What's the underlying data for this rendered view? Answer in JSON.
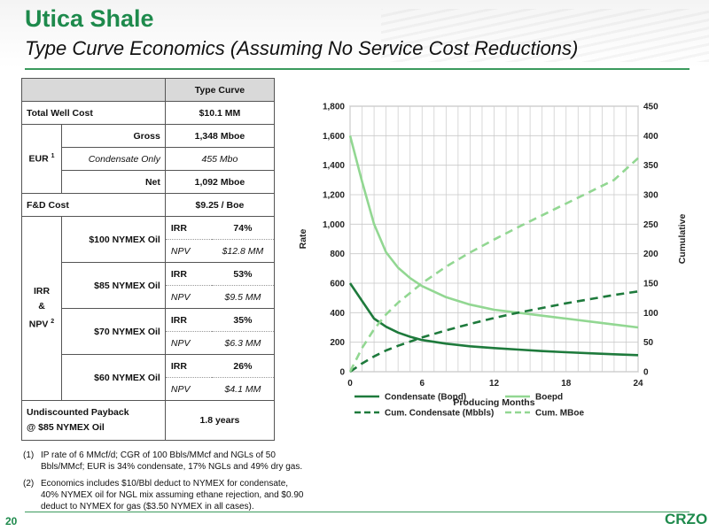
{
  "header": {
    "title": "Utica Shale",
    "subtitle": "Type Curve Economics (Assuming No Service Cost Reductions)"
  },
  "table": {
    "column_header": "Type Curve",
    "total_well_cost": {
      "label": "Total Well Cost",
      "value": "$10.1 MM"
    },
    "eur": {
      "label": "EUR",
      "sup": "1",
      "rows": [
        {
          "label": "Gross",
          "value": "1,348 Mboe"
        },
        {
          "label": "Condensate Only",
          "value": "455 Mbo"
        },
        {
          "label": "Net",
          "value": "1,092 Mboe"
        }
      ]
    },
    "fd_cost": {
      "label": "F&D Cost",
      "value": "$9.25 / Boe"
    },
    "irr_npv": {
      "label_irr": "IRR",
      "label_amp": "&",
      "label_npv": "NPV",
      "sup": "2",
      "scenarios": [
        {
          "label": "$100 NYMEX Oil",
          "irr_label": "IRR",
          "irr": "74%",
          "npv_label": "NPV",
          "npv": "$12.8 MM"
        },
        {
          "label": "$85 NYMEX Oil",
          "irr_label": "IRR",
          "irr": "53%",
          "npv_label": "NPV",
          "npv": "$9.5 MM"
        },
        {
          "label": "$70 NYMEX Oil",
          "irr_label": "IRR",
          "irr": "35%",
          "npv_label": "NPV",
          "npv": "$6.3 MM"
        },
        {
          "label": "$60 NYMEX Oil",
          "irr_label": "IRR",
          "irr": "26%",
          "npv_label": "NPV",
          "npv": "$4.1 MM"
        }
      ]
    },
    "payback": {
      "label_line1": "Undiscounted Payback",
      "label_line2": "@ $85 NYMEX Oil",
      "value": "1.8 years"
    }
  },
  "footnotes": [
    {
      "num": "(1)",
      "text": "IP rate of 6 MMcf/d; CGR of 100 Bbls/MMcf and NGLs of 50 Bbls/MMcf; EUR is 34% condensate, 17% NGLs and 49% dry gas."
    },
    {
      "num": "(2)",
      "text": "Economics includes $10/Bbl deduct to NYMEX for condensate, 40% NYMEX oil for NGL mix assuming ethane rejection, and $0.90 deduct to NYMEX for gas ($3.50 NYMEX in all cases)."
    }
  ],
  "footer": {
    "page_number": "20",
    "logo": "CRZO"
  },
  "chart_data": {
    "type": "line",
    "title": "",
    "xlabel": "Producing Months",
    "ylabel": "Rate",
    "y2label": "Cumulative",
    "xlim": [
      0,
      24
    ],
    "ylim": [
      0,
      1800
    ],
    "y2lim": [
      0,
      450
    ],
    "xticks": [
      0,
      6,
      12,
      18,
      24
    ],
    "yticks": [
      0,
      200,
      400,
      600,
      800,
      1000,
      1200,
      1400,
      1600,
      1800
    ],
    "y2ticks": [
      0,
      50,
      100,
      150,
      200,
      250,
      300,
      350,
      400,
      450
    ],
    "grid": true,
    "legend_position": "bottom",
    "colors": {
      "condensate": "#1e7a3c",
      "boe": "#92d792"
    },
    "series": [
      {
        "name": "Condensate (Bopd)",
        "axis": "left",
        "style": "solid",
        "color": "#1e7a3c",
        "x": [
          0,
          1,
          2,
          3,
          4,
          5,
          6,
          8,
          10,
          12,
          14,
          16,
          18,
          20,
          22,
          24
        ],
        "y": [
          600,
          480,
          360,
          305,
          265,
          237,
          215,
          190,
          172,
          160,
          150,
          140,
          132,
          125,
          118,
          112
        ]
      },
      {
        "name": "Boepd",
        "axis": "left",
        "style": "solid",
        "color": "#92d792",
        "x": [
          0,
          1,
          2,
          3,
          4,
          5,
          6,
          8,
          10,
          12,
          14,
          16,
          18,
          20,
          22,
          24
        ],
        "y": [
          1600,
          1290,
          1000,
          810,
          705,
          635,
          580,
          505,
          455,
          420,
          400,
          380,
          360,
          340,
          320,
          300
        ]
      },
      {
        "name": "Cum. Condensate (Mbbls)",
        "axis": "right",
        "style": "dashed",
        "color": "#1e7a3c",
        "x": [
          0,
          1,
          2,
          3,
          4,
          6,
          8,
          10,
          12,
          14,
          16,
          18,
          20,
          22,
          24
        ],
        "y": [
          0,
          14,
          26,
          36,
          44,
          58,
          70,
          81,
          91,
          100,
          108,
          116,
          123,
          130,
          136
        ]
      },
      {
        "name": "Cum. MBoe",
        "axis": "right",
        "style": "dashed",
        "color": "#92d792",
        "x": [
          0,
          1,
          2,
          3,
          4,
          6,
          8,
          10,
          12,
          14,
          16,
          18,
          20,
          22,
          24
        ],
        "y": [
          0,
          40,
          72,
          97,
          117,
          150,
          178,
          202,
          224,
          245,
          265,
          285,
          305,
          325,
          362
        ]
      }
    ]
  }
}
